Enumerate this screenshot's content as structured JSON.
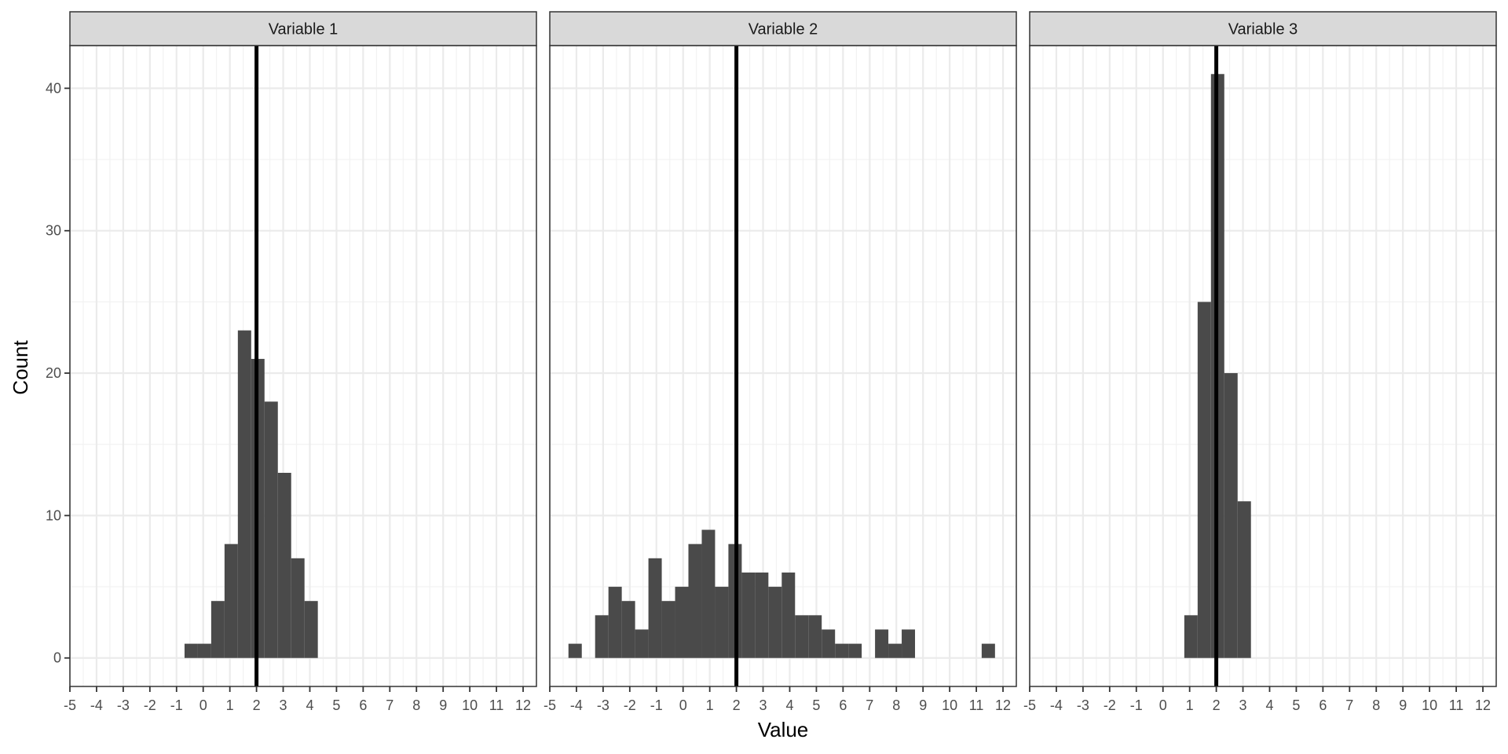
{
  "chart_data": {
    "type": "bar",
    "xlabel": "Value",
    "ylabel": "Count",
    "xlim": [
      -5,
      12.5
    ],
    "ylim": [
      -2,
      43
    ],
    "x_ticks": [
      -5,
      -4,
      -3,
      -2,
      -1,
      0,
      1,
      2,
      3,
      4,
      5,
      6,
      7,
      8,
      9,
      10,
      11,
      12
    ],
    "y_ticks": [
      0,
      10,
      20,
      30,
      40
    ],
    "bin_width": 0.5,
    "reference_line": {
      "x": 2,
      "color": "#000000"
    },
    "grid": true,
    "colors": {
      "bar": "#4a4a4a",
      "strip_fill": "#d9d9d9",
      "panel_border": "#333333",
      "grid": "#ebebeb",
      "vline": "#000000"
    },
    "panels": [
      {
        "title": "Variable 1",
        "bins": [
          {
            "x0": -0.7,
            "count": 1
          },
          {
            "x0": -0.2,
            "count": 1
          },
          {
            "x0": 0.3,
            "count": 4
          },
          {
            "x0": 0.8,
            "count": 8
          },
          {
            "x0": 1.3,
            "count": 23
          },
          {
            "x0": 1.8,
            "count": 21
          },
          {
            "x0": 2.3,
            "count": 18
          },
          {
            "x0": 2.8,
            "count": 13
          },
          {
            "x0": 3.3,
            "count": 7
          },
          {
            "x0": 3.8,
            "count": 4
          }
        ]
      },
      {
        "title": "Variable 2",
        "bins": [
          {
            "x0": -4.3,
            "count": 1
          },
          {
            "x0": -3.3,
            "count": 3
          },
          {
            "x0": -2.8,
            "count": 5
          },
          {
            "x0": -2.3,
            "count": 4
          },
          {
            "x0": -1.8,
            "count": 2
          },
          {
            "x0": -1.3,
            "count": 7
          },
          {
            "x0": -0.8,
            "count": 4
          },
          {
            "x0": -0.3,
            "count": 5
          },
          {
            "x0": 0.2,
            "count": 8
          },
          {
            "x0": 0.7,
            "count": 9
          },
          {
            "x0": 1.2,
            "count": 5
          },
          {
            "x0": 1.7,
            "count": 8
          },
          {
            "x0": 2.2,
            "count": 6
          },
          {
            "x0": 2.7,
            "count": 6
          },
          {
            "x0": 3.2,
            "count": 5
          },
          {
            "x0": 3.7,
            "count": 6
          },
          {
            "x0": 4.2,
            "count": 3
          },
          {
            "x0": 4.7,
            "count": 3
          },
          {
            "x0": 5.2,
            "count": 2
          },
          {
            "x0": 5.7,
            "count": 1
          },
          {
            "x0": 6.2,
            "count": 1
          },
          {
            "x0": 7.2,
            "count": 2
          },
          {
            "x0": 7.7,
            "count": 1
          },
          {
            "x0": 8.2,
            "count": 2
          },
          {
            "x0": 11.2,
            "count": 1
          }
        ]
      },
      {
        "title": "Variable 3",
        "bins": [
          {
            "x0": 0.8,
            "count": 3
          },
          {
            "x0": 1.3,
            "count": 25
          },
          {
            "x0": 1.8,
            "count": 41
          },
          {
            "x0": 2.3,
            "count": 20
          },
          {
            "x0": 2.8,
            "count": 11
          }
        ]
      }
    ]
  }
}
